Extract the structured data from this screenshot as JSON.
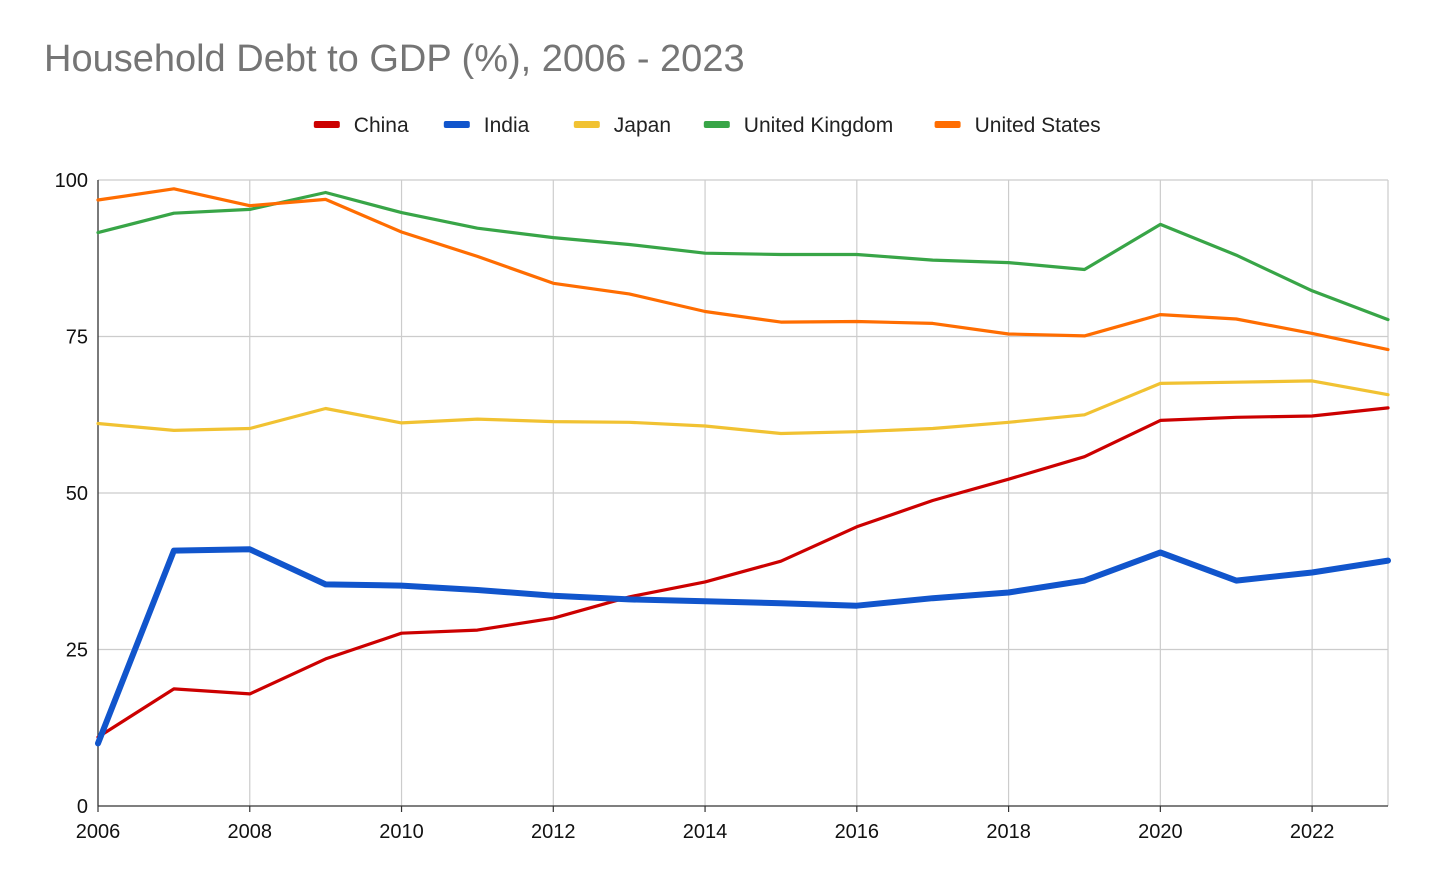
{
  "chart_data": {
    "type": "line",
    "title": "Household Debt to GDP (%), 2006 - 2023",
    "xlabel": "",
    "ylabel": "",
    "x": [
      2006,
      2007,
      2008,
      2009,
      2010,
      2011,
      2012,
      2013,
      2014,
      2015,
      2016,
      2017,
      2018,
      2019,
      2020,
      2021,
      2022,
      2023
    ],
    "xlim": [
      2006,
      2023
    ],
    "ylim": [
      0,
      100
    ],
    "x_ticks": [
      "2006",
      "2008",
      "2010",
      "2012",
      "2014",
      "2016",
      "2018",
      "2020",
      "2022"
    ],
    "y_ticks": [
      "0",
      "25",
      "50",
      "75",
      "100"
    ],
    "grid": true,
    "legend_position": "top",
    "series": [
      {
        "name": "China",
        "color": "#cc0000",
        "values": [
          11.0,
          18.7,
          17.9,
          23.5,
          27.6,
          28.1,
          30.0,
          33.4,
          35.8,
          39.1,
          44.6,
          48.8,
          52.2,
          55.8,
          61.6,
          62.1,
          62.3,
          63.6
        ]
      },
      {
        "name": "India",
        "color": "#1155cc",
        "values": [
          10.0,
          40.8,
          41.0,
          35.4,
          35.2,
          34.5,
          33.6,
          33.0,
          32.7,
          32.4,
          32.0,
          33.2,
          34.1,
          36.0,
          40.5,
          36.0,
          37.3,
          39.2
        ]
      },
      {
        "name": "Japan",
        "color": "#f1c232",
        "values": [
          61.1,
          60.0,
          60.3,
          63.5,
          61.2,
          61.8,
          61.4,
          61.3,
          60.7,
          59.5,
          59.8,
          60.3,
          61.3,
          62.5,
          67.5,
          67.7,
          67.9,
          65.7
        ]
      },
      {
        "name": "United Kingdom",
        "color": "#38a547",
        "values": [
          91.6,
          94.7,
          95.3,
          98.0,
          94.8,
          92.3,
          90.8,
          89.7,
          88.3,
          88.1,
          88.1,
          87.2,
          86.8,
          85.7,
          92.9,
          88.0,
          82.3,
          77.7
        ]
      },
      {
        "name": "United States",
        "color": "#ff6d01",
        "values": [
          96.8,
          98.6,
          95.9,
          96.9,
          91.7,
          87.8,
          83.5,
          81.8,
          79.0,
          77.3,
          77.4,
          77.1,
          75.4,
          75.1,
          78.5,
          77.8,
          75.5,
          72.9
        ]
      }
    ]
  }
}
